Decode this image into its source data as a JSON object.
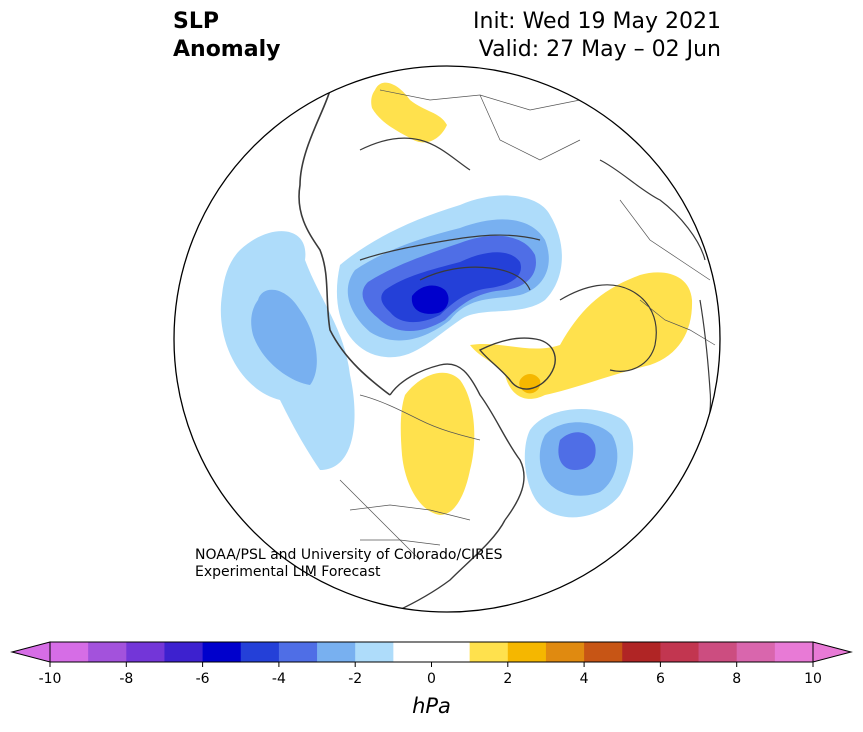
{
  "title": {
    "left_line1": "SLP",
    "left_line2": "Anomaly",
    "init": "Init: Wed 19 May 2021",
    "valid": "Valid: 27 May – 02 Jun"
  },
  "credit": {
    "line1": "NOAA/PSL and University of Colorado/CIRES",
    "line2": "Experimental LIM Forecast"
  },
  "colorbar": {
    "unit": "hPa",
    "range": [
      -10,
      10
    ],
    "step": 1,
    "tick_labels": [
      "-10",
      "-8",
      "-6",
      "-4",
      "-2",
      "0",
      "2",
      "4",
      "6",
      "8",
      "10"
    ],
    "colors": [
      "#d66de6",
      "#a352dc",
      "#7336d8",
      "#3d21cf",
      "#0000cc",
      "#2440d8",
      "#4f6ee6",
      "#78b0f0",
      "#aedcfa",
      "#ffffff",
      "#ffffff",
      "#ffe14d",
      "#f5b700",
      "#e08a10",
      "#c75515",
      "#b02525",
      "#c23650",
      "#cc4d80",
      "#d966ad",
      "#e87ad6"
    ],
    "under_color": "#d66de6",
    "over_color": "#e87ad6"
  },
  "map": {
    "projection": "north-polar-stereographic",
    "colors": {
      "land_outline": "#3a3a3a",
      "border": "#555555",
      "blue_light": "#aedcfa",
      "blue_mid": "#78b0f0",
      "blue_3": "#4f6ee6",
      "blue_4": "#2440d8",
      "blue_dark": "#0000cc",
      "yellow": "#ffe14d",
      "orange": "#f5b700"
    },
    "anomaly_features": [
      {
        "name": "negative-anomaly-arctic",
        "min_value": -6
      },
      {
        "name": "negative-anomaly-north-pacific",
        "min_value": -3
      },
      {
        "name": "negative-anomaly-north-atlantic",
        "min_value": -4
      },
      {
        "name": "positive-anomaly-canada",
        "max_value": 2
      },
      {
        "name": "positive-anomaly-greenland-europe",
        "max_value": 3
      },
      {
        "name": "positive-anomaly-siberia",
        "max_value": 2
      }
    ]
  }
}
